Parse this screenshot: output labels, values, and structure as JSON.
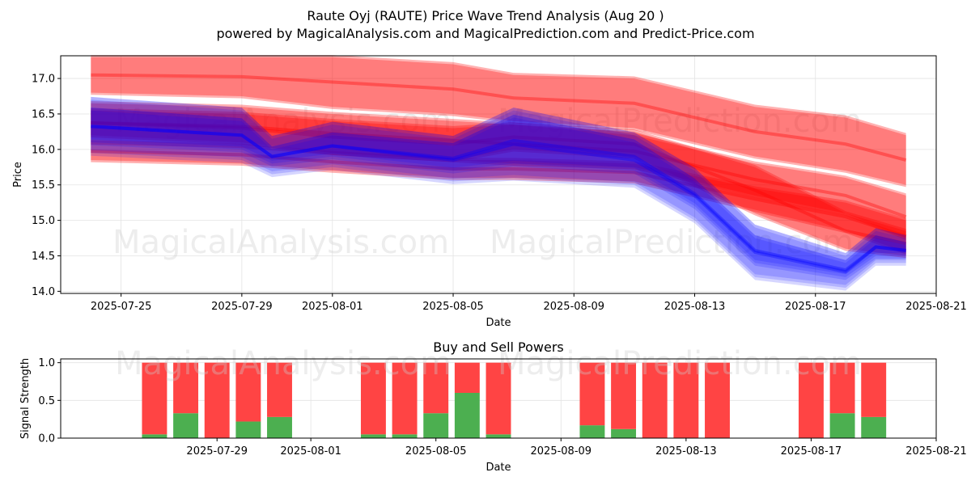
{
  "title_line1": "Raute Oyj (RAUTE) Price Wave Trend Analysis (Aug 20 )",
  "title_line2": "powered by MagicalAnalysis.com and MagicalPrediction.com and Predict-Price.com",
  "watermarks": {
    "site1": "MagicalAnalysis.com",
    "site2": "MagicalPrediction.com"
  },
  "colors": {
    "red_band": "#ff0000",
    "blue_band": "#0000ff",
    "buy": "#4caf50",
    "sell": "#ff4444"
  },
  "chart_data": [
    {
      "type": "area",
      "title": "",
      "xlabel": "Date",
      "ylabel": "Price",
      "xlim": [
        "2025-07-23",
        "2025-08-21"
      ],
      "ylim": [
        13.97,
        17.32
      ],
      "grid": true,
      "x_ticks": [
        "2025-07-25",
        "2025-07-29",
        "2025-08-01",
        "2025-08-05",
        "2025-08-09",
        "2025-08-13",
        "2025-08-17",
        "2025-08-21"
      ],
      "y_ticks": [
        "14.0",
        "14.5",
        "15.0",
        "15.5",
        "16.0",
        "16.5",
        "17.0"
      ],
      "series": [
        {
          "color": "red",
          "x": [
            "2025-07-24",
            "2025-07-29",
            "2025-08-01",
            "2025-08-05",
            "2025-08-07",
            "2025-08-11",
            "2025-08-15",
            "2025-08-18",
            "2025-08-20"
          ],
          "upper": [
            17.3,
            17.3,
            17.3,
            17.2,
            17.05,
            17.0,
            16.6,
            16.45,
            16.2
          ],
          "lower": [
            16.8,
            16.75,
            16.6,
            16.5,
            16.4,
            16.3,
            15.9,
            15.7,
            15.5
          ]
        },
        {
          "color": "red",
          "x": [
            "2025-07-24",
            "2025-07-29",
            "2025-08-01",
            "2025-08-05",
            "2025-08-07",
            "2025-08-11",
            "2025-08-15",
            "2025-08-18",
            "2025-08-20"
          ],
          "upper": [
            16.65,
            16.6,
            16.5,
            16.4,
            16.35,
            16.2,
            15.8,
            15.6,
            15.35
          ],
          "lower": [
            16.1,
            16.05,
            15.95,
            15.85,
            15.8,
            15.75,
            15.35,
            15.1,
            14.75
          ]
        },
        {
          "color": "red",
          "x": [
            "2025-07-24",
            "2025-07-29",
            "2025-08-01",
            "2025-08-05",
            "2025-08-07",
            "2025-08-11",
            "2025-08-15",
            "2025-08-18",
            "2025-08-20"
          ],
          "upper": [
            16.1,
            16.05,
            15.95,
            15.85,
            15.85,
            15.8,
            15.45,
            15.25,
            15.0
          ],
          "lower": [
            15.85,
            15.8,
            15.7,
            15.6,
            15.6,
            15.55,
            15.15,
            14.85,
            14.55
          ]
        },
        {
          "color": "red",
          "x": [
            "2025-07-24",
            "2025-07-29",
            "2025-08-01",
            "2025-08-05",
            "2025-08-07",
            "2025-08-11",
            "2025-08-15",
            "2025-08-18",
            "2025-08-20"
          ],
          "upper": [
            16.55,
            16.5,
            16.4,
            16.3,
            16.35,
            16.25,
            15.75,
            15.1,
            14.85
          ],
          "lower": [
            16.2,
            16.1,
            15.95,
            15.85,
            16.0,
            15.9,
            15.1,
            14.6,
            14.5
          ]
        },
        {
          "color": "blue",
          "x": [
            "2025-07-24",
            "2025-07-29",
            "2025-07-30",
            "2025-08-01",
            "2025-08-05",
            "2025-08-07",
            "2025-08-11",
            "2025-08-13",
            "2025-08-15",
            "2025-08-18",
            "2025-08-19",
            "2025-08-20"
          ],
          "upper": [
            16.7,
            16.55,
            16.15,
            16.35,
            16.15,
            16.55,
            16.2,
            15.7,
            14.9,
            14.5,
            14.85,
            14.75
          ],
          "lower": [
            15.95,
            15.85,
            15.65,
            15.75,
            15.55,
            15.6,
            15.5,
            15.0,
            14.2,
            14.05,
            14.4,
            14.4
          ]
        },
        {
          "color": "blue",
          "x": [
            "2025-07-24",
            "2025-07-29",
            "2025-07-30",
            "2025-08-01",
            "2025-08-05",
            "2025-08-07",
            "2025-08-11",
            "2025-08-13",
            "2025-08-15",
            "2025-08-18",
            "2025-08-19",
            "2025-08-20"
          ],
          "upper": [
            16.55,
            16.4,
            16.0,
            16.2,
            16.05,
            16.45,
            16.1,
            15.55,
            14.75,
            14.4,
            14.75,
            14.65
          ],
          "lower": [
            16.1,
            16.0,
            15.8,
            15.9,
            15.7,
            15.8,
            15.7,
            15.2,
            14.4,
            14.2,
            14.5,
            14.5
          ]
        }
      ]
    },
    {
      "type": "bar",
      "title": "Buy and Sell Powers",
      "xlabel": "Date",
      "ylabel": "Signal Strength",
      "xlim": [
        "2025-07-24",
        "2025-08-21"
      ],
      "ylim": [
        0,
        1.05
      ],
      "grid": true,
      "x_ticks": [
        "2025-07-29",
        "2025-08-01",
        "2025-08-05",
        "2025-08-09",
        "2025-08-13",
        "2025-08-17",
        "2025-08-21"
      ],
      "y_ticks": [
        "0.0",
        "0.5",
        "1.0"
      ],
      "dates": [
        "2025-07-27",
        "2025-07-28",
        "2025-07-29",
        "2025-07-30",
        "2025-07-31",
        "2025-08-03",
        "2025-08-04",
        "2025-08-05",
        "2025-08-06",
        "2025-08-07",
        "2025-08-10",
        "2025-08-11",
        "2025-08-12",
        "2025-08-13",
        "2025-08-14",
        "2025-08-17",
        "2025-08-18",
        "2025-08-19"
      ],
      "series": [
        {
          "name": "Buy",
          "values": [
            0.05,
            0.33,
            0.0,
            0.22,
            0.28,
            0.05,
            0.05,
            0.33,
            0.6,
            0.05,
            0.17,
            0.12,
            0.0,
            0.0,
            0.0,
            0.0,
            0.33,
            0.28
          ]
        },
        {
          "name": "Sell",
          "values": [
            0.95,
            0.67,
            1.0,
            0.78,
            0.72,
            0.95,
            0.95,
            0.67,
            0.4,
            0.95,
            0.83,
            0.88,
            1.0,
            1.0,
            1.0,
            1.0,
            0.67,
            0.72
          ]
        }
      ]
    }
  ]
}
